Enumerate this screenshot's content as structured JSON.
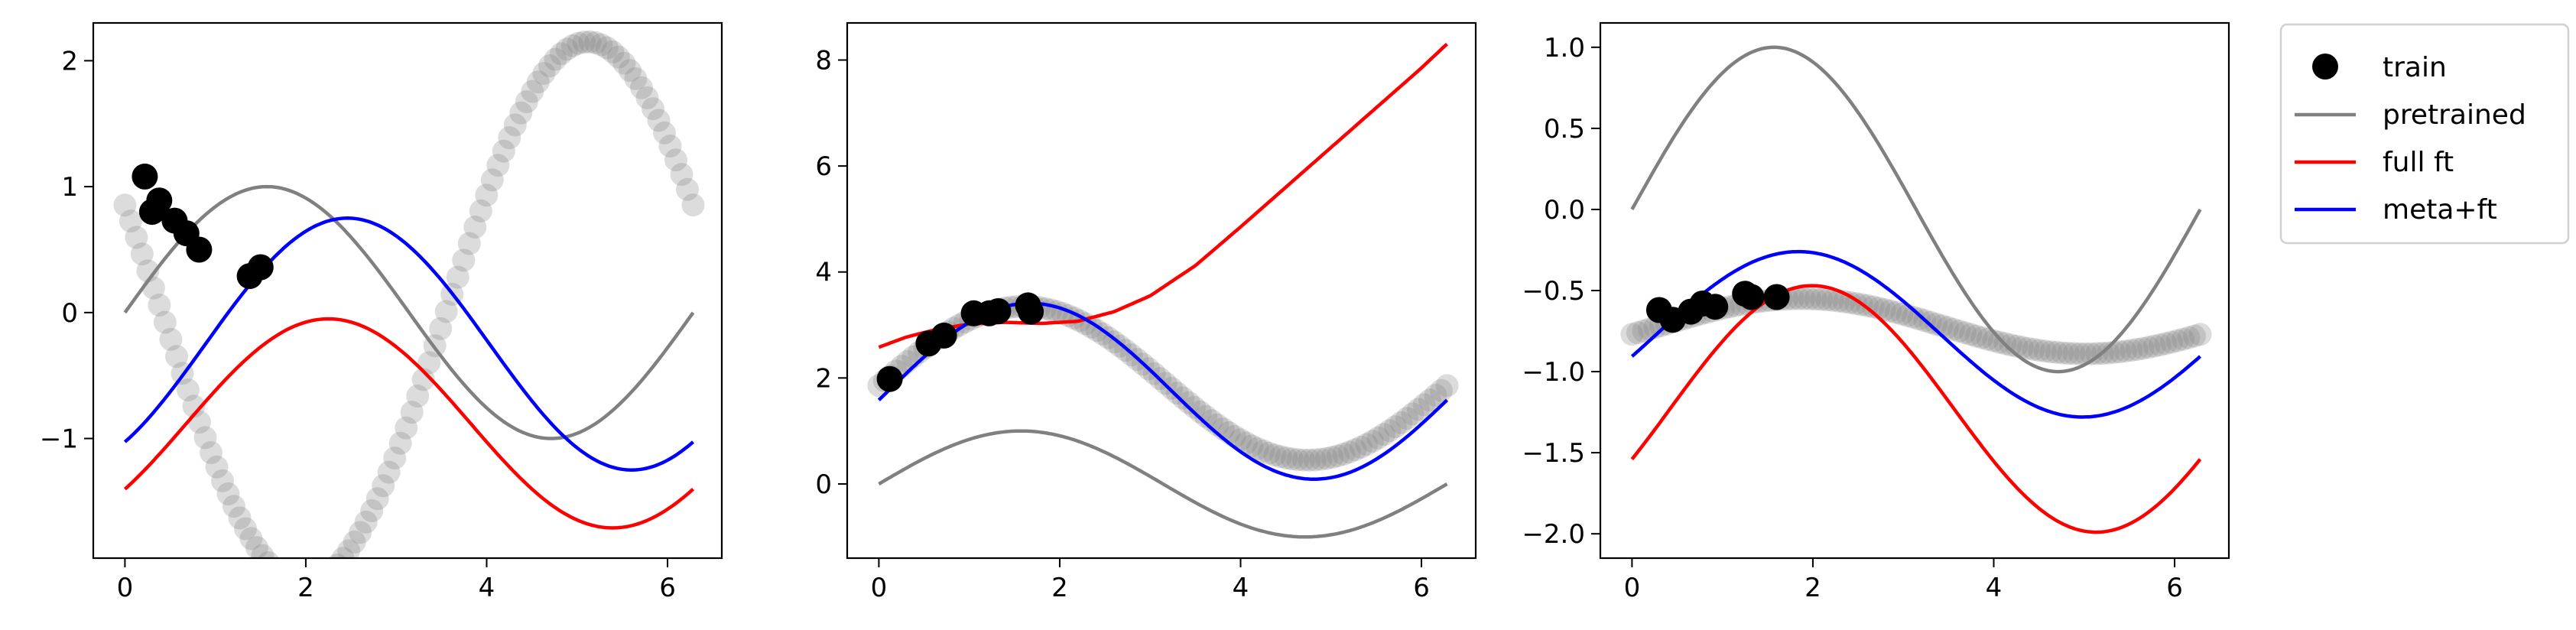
{
  "chart_data": [
    {
      "type": "scatter+line",
      "xlim": [
        -0.35,
        6.6
      ],
      "ylim": [
        -1.95,
        2.3
      ],
      "xticks": [
        0,
        2,
        4,
        6
      ],
      "xtick_labels": [
        "0",
        "2",
        "4",
        "6"
      ],
      "yticks": [
        -1,
        0,
        1,
        2
      ],
      "ytick_labels": [
        "−1",
        "0",
        "1",
        "2"
      ],
      "target": {
        "amplitude": 2.15,
        "phase": 3.55,
        "offset": 0.0
      },
      "train": {
        "x": [
          0.22,
          0.3,
          0.38,
          0.55,
          0.68,
          0.82,
          1.38,
          1.5
        ],
        "y": [
          1.08,
          0.8,
          0.89,
          0.73,
          0.63,
          0.5,
          0.29,
          0.36
        ]
      },
      "lines": {
        "pretrained": {
          "amplitude": 1.0,
          "phase": 0.0,
          "offset": 0.0
        },
        "full_ft": {
          "amplitude": 0.83,
          "phase": 0.68,
          "offset": -0.88
        },
        "meta_ft": {
          "amplitude": 1.0,
          "phase": 0.89,
          "offset": -0.25
        }
      }
    },
    {
      "type": "scatter+line",
      "xlim": [
        -0.35,
        6.6
      ],
      "ylim": [
        -1.4,
        8.7
      ],
      "xticks": [
        0,
        2,
        4,
        6
      ],
      "xtick_labels": [
        "0",
        "2",
        "4",
        "6"
      ],
      "yticks": [
        0,
        2,
        4,
        6,
        8
      ],
      "ytick_labels": [
        "0",
        "2",
        "4",
        "6",
        "8"
      ],
      "target": {
        "amplitude": 1.45,
        "phase": 0.03,
        "offset": 1.9
      },
      "train": {
        "x": [
          0.12,
          0.55,
          0.72,
          1.05,
          1.22,
          1.32,
          1.65,
          1.68
        ],
        "y": [
          1.98,
          2.65,
          2.8,
          3.22,
          3.22,
          3.26,
          3.37,
          3.25
        ]
      },
      "lines": {
        "pretrained": {
          "amplitude": 1.0,
          "phase": 0.0,
          "offset": 0.0
        },
        "full_ft": {
          "x": [
            0,
            0.3,
            0.6,
            1.0,
            1.4,
            1.8,
            2.2,
            2.6,
            3.0,
            3.5,
            4.0,
            4.5,
            5.0,
            5.5,
            6.0,
            6.28
          ],
          "y": [
            2.58,
            2.77,
            2.9,
            3.02,
            3.05,
            3.03,
            3.07,
            3.25,
            3.55,
            4.12,
            4.85,
            5.6,
            6.35,
            7.1,
            7.85,
            8.3
          ]
        },
        "meta_ft": {
          "amplitude": 1.66,
          "phase": 0.1,
          "offset": 1.75
        }
      }
    },
    {
      "type": "scatter+line",
      "xlim": [
        -0.35,
        6.6
      ],
      "ylim": [
        -2.15,
        1.15
      ],
      "xticks": [
        0,
        2,
        4,
        6
      ],
      "xtick_labels": [
        "0",
        "2",
        "4",
        "6"
      ],
      "yticks": [
        -2.0,
        -1.5,
        -1.0,
        -0.5,
        0.0,
        0.5,
        1.0
      ],
      "ytick_labels": [
        "−2.0",
        "−1.5",
        "−1.0",
        "−0.5",
        "0.0",
        "0.5",
        "1.0"
      ],
      "target": {
        "amplitude": 0.17,
        "phase": 0.3,
        "offset": -0.72
      },
      "train": {
        "x": [
          0.3,
          0.45,
          0.65,
          0.78,
          0.92,
          1.25,
          1.32,
          1.6
        ],
        "y": [
          -0.62,
          -0.68,
          -0.63,
          -0.58,
          -0.6,
          -0.52,
          -0.54,
          -0.54
        ]
      },
      "lines": {
        "pretrained": {
          "amplitude": 1.0,
          "phase": 0.0,
          "offset": 0.0
        },
        "full_ft": {
          "amplitude": 0.76,
          "phase": 0.42,
          "offset": -1.23
        },
        "meta_ft": {
          "amplitude": 0.51,
          "phase": 0.27,
          "offset": -0.77
        }
      }
    }
  ],
  "legend": {
    "position": "right, outside",
    "entries": [
      {
        "key": "train",
        "label": "train"
      },
      {
        "key": "pretrained",
        "label": "pretrained"
      },
      {
        "key": "full_ft",
        "label": "full ft"
      },
      {
        "key": "meta_ft",
        "label": "meta+ft"
      }
    ]
  },
  "colors": {
    "train": "#000000",
    "target_points": "#808080",
    "pretrained": "#808080",
    "full_ft": "#ff0000",
    "meta_ft": "#0000ff"
  }
}
